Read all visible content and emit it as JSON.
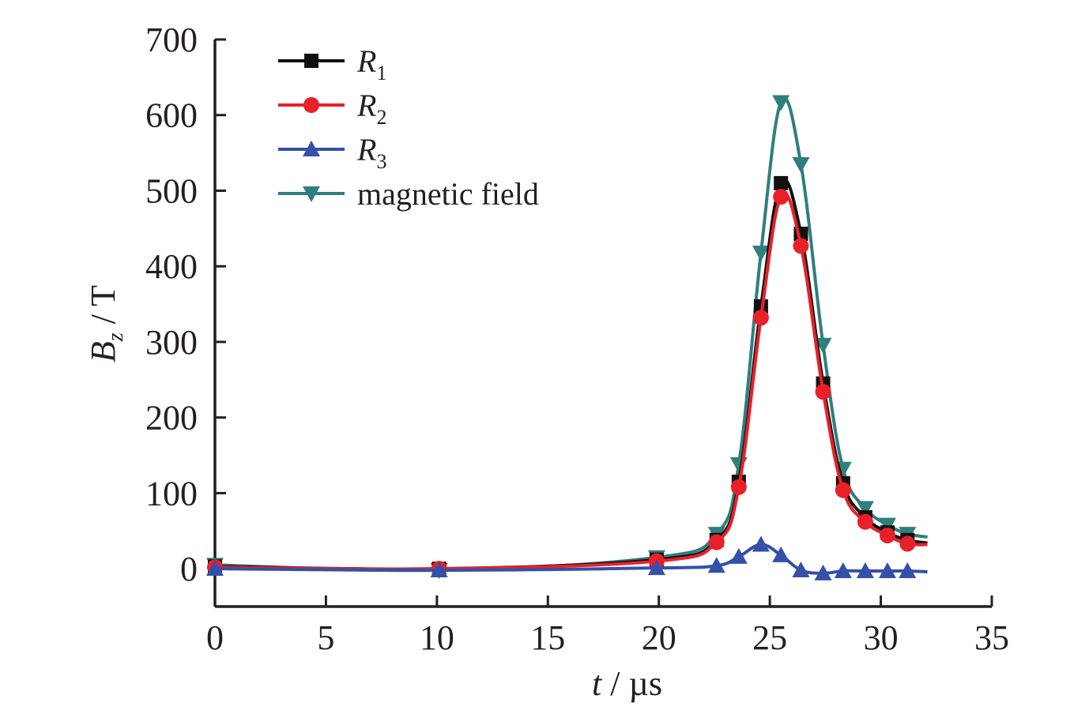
{
  "chart_data": {
    "type": "line",
    "title": "",
    "xlabel": {
      "var": "t",
      "sep": " / ",
      "unit": "µs"
    },
    "ylabel": {
      "var": "B",
      "sub": "z",
      "sep": " / ",
      "unit": "T"
    },
    "xlim": [
      0,
      35
    ],
    "ylim": [
      -50,
      700
    ],
    "xticks": [
      0,
      5,
      10,
      15,
      20,
      25,
      30,
      35
    ],
    "yticks": [
      0,
      100,
      200,
      300,
      400,
      500,
      600,
      700
    ],
    "xtick_labels": [
      "0",
      "5",
      "10",
      "15",
      "20",
      "25",
      "30",
      "35"
    ],
    "ytick_labels": [
      "0",
      "100",
      "200",
      "300",
      "400",
      "500",
      "600",
      "700"
    ],
    "grid": false,
    "legend_position": "top-left",
    "marker_x": [
      0,
      10.1,
      19.9,
      22.6,
      23.6,
      24.6,
      25.5,
      26.4,
      27.4,
      28.3,
      29.3,
      30.3,
      31.2
    ],
    "line_end_x": 32.1,
    "series": [
      {
        "name": "R",
        "sub": "1",
        "italic": true,
        "color": "#111111",
        "marker": "square",
        "values": [
          3,
          0,
          12,
          38,
          115,
          347,
          510,
          443,
          245,
          113,
          68,
          48,
          38
        ],
        "end_value": 34
      },
      {
        "name": "R",
        "sub": "2",
        "italic": true,
        "color": "#e8202a",
        "marker": "circle",
        "values": [
          2,
          0,
          10,
          35,
          108,
          332,
          492,
          427,
          234,
          104,
          62,
          44,
          33
        ],
        "end_value": 32
      },
      {
        "name": "R",
        "sub": "3",
        "italic": true,
        "color": "#3450a8",
        "marker": "triangle-up",
        "values": [
          0,
          -2,
          1,
          4,
          16,
          32,
          18,
          -2,
          -6,
          -3,
          -3,
          -3,
          -3
        ],
        "end_value": -4
      },
      {
        "name": "magnetic field",
        "sub": "",
        "italic": false,
        "color": "#2e7f7d",
        "marker": "triangle-down",
        "values": [
          5,
          -2,
          15,
          46,
          138,
          418,
          617,
          535,
          296,
          132,
          80,
          58,
          46
        ],
        "end_value": 42
      }
    ]
  }
}
